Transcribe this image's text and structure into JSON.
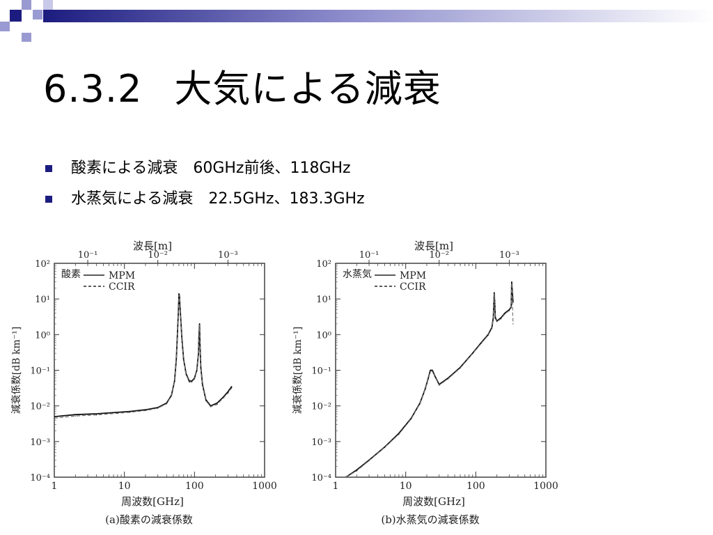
{
  "title": {
    "number": "6.3.2",
    "text": "大気による減衰"
  },
  "bullets": [
    {
      "label": "酸素による減衰",
      "value": "60GHz前後、118GHz"
    },
    {
      "label": "水蒸気による減衰",
      "value": "22.5GHz、183.3GHz"
    }
  ],
  "colors": {
    "accent_dark": "#1c1c80",
    "accent_light": "#9a9ad2",
    "curve": "#000000"
  },
  "chart_data": [
    {
      "type": "line",
      "caption": "(a)酸素の減衰係数",
      "legend_title": "酸素",
      "legend_position": "top-left",
      "xlabel": "周波数[GHz]",
      "ylabel": "減衰係数[dB km⁻¹]",
      "top_axis_label": "波長[m]",
      "xscale": "log",
      "yscale": "log",
      "xlim": [
        1,
        1000
      ],
      "ylim": [
        0.0001,
        100
      ],
      "xticks": [
        "1",
        "10",
        "100",
        "1000"
      ],
      "yticks": [
        "10⁻⁴",
        "10⁻³",
        "10⁻²",
        "10⁻¹",
        "10⁰",
        "10¹",
        "10²"
      ],
      "top_ticks": [
        "10⁻¹",
        "10⁻²",
        "10⁻³"
      ],
      "series": [
        {
          "name": "MPM",
          "style": "solid",
          "x": [
            1,
            2,
            4,
            8,
            12,
            20,
            30,
            40,
            47,
            52,
            55,
            57,
            59,
            60,
            61,
            63,
            66,
            70,
            76,
            84,
            92,
            100,
            108,
            114,
            116,
            118,
            120,
            123,
            130,
            145,
            170,
            210,
            260,
            300,
            340
          ],
          "y": [
            0.005,
            0.0057,
            0.006,
            0.0066,
            0.007,
            0.0078,
            0.009,
            0.012,
            0.02,
            0.05,
            0.2,
            1,
            5,
            14,
            12,
            4,
            0.8,
            0.2,
            0.08,
            0.05,
            0.05,
            0.06,
            0.1,
            0.3,
            1,
            2,
            0.5,
            0.12,
            0.04,
            0.015,
            0.01,
            0.012,
            0.018,
            0.025,
            0.035
          ]
        },
        {
          "name": "CCIR",
          "style": "dashed",
          "x": [
            1,
            2,
            4,
            8,
            12,
            20,
            30,
            40,
            47,
            52,
            55,
            57,
            59,
            60,
            61,
            63,
            66,
            70,
            76,
            84,
            92,
            100,
            108,
            114,
            116,
            118,
            120,
            123,
            130,
            145,
            170,
            210,
            260,
            300,
            340
          ],
          "y": [
            0.0045,
            0.0052,
            0.0056,
            0.0062,
            0.0066,
            0.0074,
            0.0086,
            0.0115,
            0.019,
            0.048,
            0.19,
            0.95,
            4.8,
            13,
            11,
            3.8,
            0.75,
            0.19,
            0.075,
            0.047,
            0.047,
            0.057,
            0.095,
            0.28,
            0.95,
            1.9,
            0.48,
            0.11,
            0.037,
            0.014,
            0.0095,
            0.011,
            0.017,
            0.023,
            0.032
          ]
        }
      ]
    },
    {
      "type": "line",
      "caption": "(b)水蒸気の減衰係数",
      "legend_title": "水蒸気",
      "legend_position": "top-left",
      "xlabel": "周波数[GHz]",
      "ylabel": "減衰係数[dB km⁻¹]",
      "top_axis_label": "波長[m]",
      "xscale": "log",
      "yscale": "log",
      "xlim": [
        1,
        1000
      ],
      "ylim": [
        0.0001,
        100
      ],
      "xticks": [
        "1",
        "10",
        "100",
        "1000"
      ],
      "yticks": [
        "10⁻⁴",
        "10⁻³",
        "10⁻²",
        "10⁻¹",
        "10⁰",
        "10¹",
        "10²"
      ],
      "top_ticks": [
        "10⁻¹",
        "10⁻²",
        "10⁻³"
      ],
      "series": [
        {
          "name": "MPM",
          "style": "solid",
          "x": [
            1.4,
            2,
            3,
            5,
            8,
            12,
            16,
            19,
            21,
            22.5,
            24,
            26,
            30,
            40,
            60,
            90,
            120,
            150,
            170,
            178,
            181,
            183,
            186,
            190,
            200,
            230,
            260,
            300,
            320,
            325,
            330,
            340
          ],
          "y": [
            0.0001,
            0.00016,
            0.0003,
            0.0007,
            0.0017,
            0.0045,
            0.012,
            0.03,
            0.06,
            0.1,
            0.1,
            0.07,
            0.04,
            0.06,
            0.12,
            0.3,
            0.6,
            1,
            1.6,
            3,
            8,
            15,
            8,
            3,
            2.4,
            3,
            4,
            5,
            6,
            30,
            20,
            8
          ]
        },
        {
          "name": "CCIR",
          "style": "dashed",
          "x": [
            1.4,
            2,
            3,
            5,
            8,
            12,
            16,
            19,
            21,
            22.5,
            24,
            26,
            30,
            40,
            60,
            90,
            120,
            150,
            170,
            178,
            181,
            183,
            186,
            190,
            200,
            230,
            260,
            300,
            320,
            325,
            330,
            340
          ],
          "y": [
            0.0001,
            0.00015,
            0.00029,
            0.00068,
            0.0016,
            0.0043,
            0.0115,
            0.029,
            0.057,
            0.095,
            0.095,
            0.067,
            0.038,
            0.057,
            0.115,
            0.29,
            0.57,
            0.95,
            1.5,
            2.8,
            7.5,
            14,
            7.5,
            2.8,
            2.3,
            2.8,
            3.8,
            4.7,
            5.7,
            28,
            19,
            2
          ]
        }
      ]
    }
  ]
}
